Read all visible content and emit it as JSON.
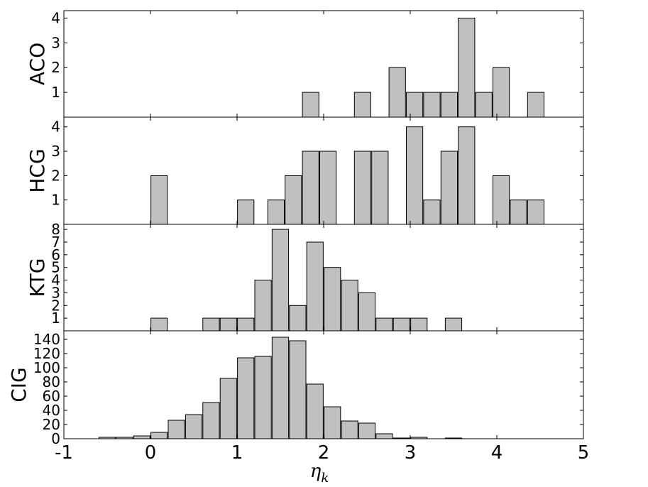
{
  "chart_data": {
    "type": "bar",
    "xlabel": "η",
    "xlabel_sub": "k",
    "xlim": [
      -1,
      5
    ],
    "xticks": [
      "-1",
      "0",
      "1",
      "2",
      "3",
      "4",
      "5"
    ],
    "bar_width": 0.19,
    "bar_color": "#c0c0c0",
    "panels": [
      {
        "name": "ACO",
        "ylim": [
          0,
          4.3
        ],
        "yticks": [
          "1",
          "2",
          "3",
          "4"
        ],
        "x": [
          1.85,
          2.45,
          2.85,
          3.05,
          3.25,
          3.45,
          3.65,
          3.85,
          4.05,
          4.45
        ],
        "values": [
          1,
          1,
          2,
          1,
          1,
          1,
          4,
          1,
          2,
          1
        ]
      },
      {
        "name": "HCG",
        "ylim": [
          0,
          4.4
        ],
        "yticks": [
          "1",
          "2",
          "3",
          "4"
        ],
        "x": [
          0.1,
          1.1,
          1.45,
          1.65,
          1.85,
          2.05,
          2.45,
          2.65,
          3.05,
          3.25,
          3.45,
          3.65,
          4.05,
          4.25,
          4.45
        ],
        "values": [
          2,
          1,
          1,
          2,
          3,
          3,
          3,
          3,
          4,
          1,
          3,
          4,
          2,
          1,
          1
        ]
      },
      {
        "name": "KTG",
        "ylim": [
          0,
          8.4
        ],
        "yticks": [
          "1",
          "2",
          "3",
          "4",
          "5",
          "6",
          "7",
          "8"
        ],
        "x": [
          0.1,
          0.7,
          0.9,
          1.1,
          1.3,
          1.5,
          1.7,
          1.9,
          2.1,
          2.3,
          2.5,
          2.7,
          2.9,
          3.1,
          3.5
        ],
        "values": [
          1,
          1,
          1,
          1,
          4,
          8,
          2,
          7,
          5,
          4,
          3,
          1,
          1,
          1,
          1
        ]
      },
      {
        "name": "CIG",
        "ylim": [
          0,
          152
        ],
        "yticks": [
          "0",
          "20",
          "40",
          "60",
          "80",
          "100",
          "120",
          "140"
        ],
        "x": [
          -0.5,
          -0.3,
          -0.1,
          0.1,
          0.3,
          0.5,
          0.7,
          0.9,
          1.1,
          1.3,
          1.5,
          1.7,
          1.9,
          2.1,
          2.3,
          2.5,
          2.7,
          2.9,
          3.1,
          3.5
        ],
        "values": [
          2,
          2,
          4,
          9,
          26,
          34,
          51,
          85,
          114,
          116,
          143,
          138,
          77,
          45,
          25,
          22,
          7,
          1,
          2,
          1
        ]
      }
    ]
  }
}
